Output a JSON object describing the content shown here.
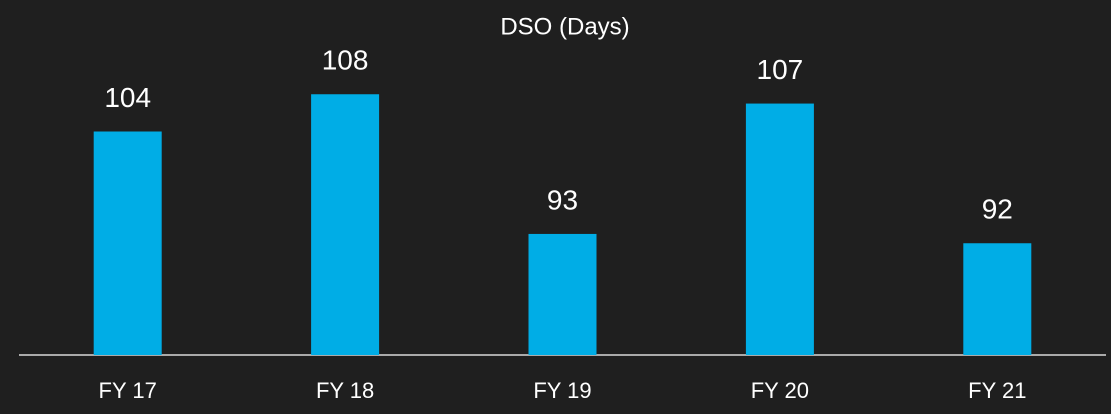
{
  "chart_data": {
    "type": "bar",
    "title": "DSO (Days)",
    "categories": [
      "FY 17",
      "FY 18",
      "FY 19",
      "FY 20",
      "FY 21"
    ],
    "values": [
      104,
      108,
      93,
      107,
      92
    ],
    "color": "#00ade6",
    "ylim": [
      80,
      112
    ]
  }
}
